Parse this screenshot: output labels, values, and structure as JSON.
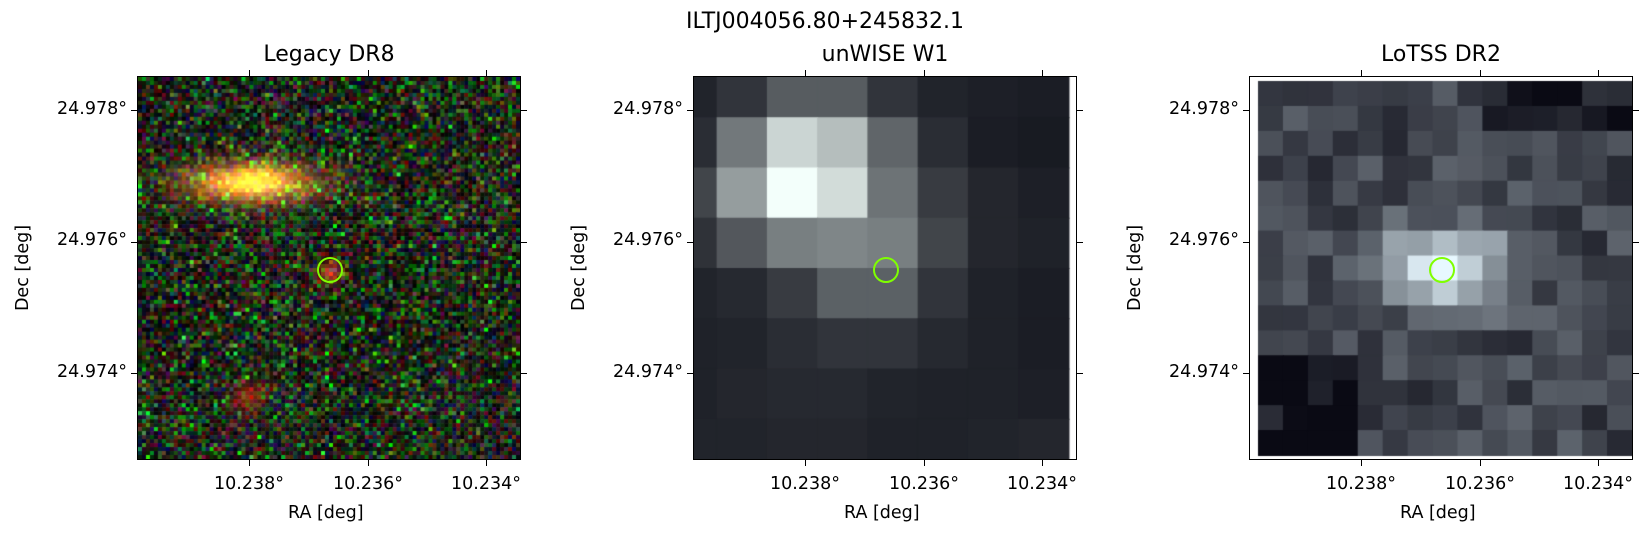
{
  "figure": {
    "title": "ILTJ004056.80+245832.1"
  },
  "panels": [
    {
      "title": "Legacy DR8",
      "xlabel": "RA [deg]",
      "ylabel": "Dec [deg]",
      "xticks": [
        "10.238°",
        "10.236°",
        "10.234°"
      ],
      "yticks": [
        "24.978°",
        "24.976°",
        "24.974°"
      ],
      "image": "legacy-rgb-cutout"
    },
    {
      "title": "unWISE W1",
      "xlabel": "RA [deg]",
      "ylabel": "Dec [deg]",
      "xticks": [
        "10.238°",
        "10.236°",
        "10.234°"
      ],
      "yticks": [
        "24.978°",
        "24.976°",
        "24.974°"
      ],
      "image": "unwise-w1-cutout"
    },
    {
      "title": "LoTSS DR2",
      "xlabel": "RA [deg]",
      "ylabel": "Dec [deg]",
      "xticks": [
        "10.238°",
        "10.236°",
        "10.234°"
      ],
      "yticks": [
        "24.978°",
        "24.976°",
        "24.974°"
      ],
      "image": "lotss-dr2-cutout"
    }
  ],
  "colors": {
    "marker": "#7fff00"
  }
}
